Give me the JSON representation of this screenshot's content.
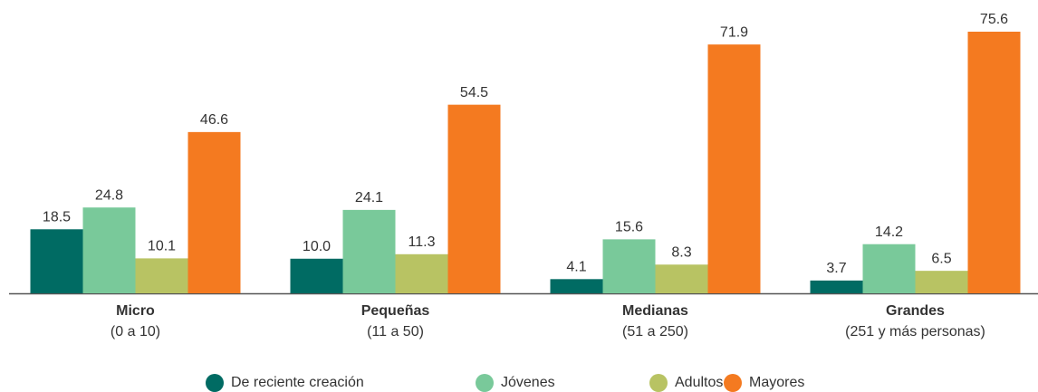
{
  "chart_data": {
    "type": "bar",
    "categories": [
      "Micro",
      "Pequeñas",
      "Medianas",
      "Grandes"
    ],
    "category_ranges": [
      "(0 a 10)",
      "(11 a 50)",
      "(51 a 250)",
      "(251 y más personas)"
    ],
    "series": [
      {
        "name": "De reciente creación",
        "color": "#006b63",
        "values": [
          18.5,
          10.0,
          4.1,
          3.7
        ],
        "value_labels": [
          "18.5",
          "10.0",
          "4.1",
          "3.7"
        ]
      },
      {
        "name": "Jóvenes",
        "color": "#79c99a",
        "values": [
          24.8,
          24.1,
          15.6,
          14.2
        ],
        "value_labels": [
          "24.8",
          "24.1",
          "15.6",
          "14.2"
        ]
      },
      {
        "name": "Adultos",
        "color": "#b8c363",
        "values": [
          10.1,
          11.3,
          8.3,
          6.5
        ],
        "value_labels": [
          "10.1",
          "11.3",
          "8.3",
          "6.5"
        ]
      },
      {
        "name": "Mayores",
        "color": "#f47a20",
        "values": [
          46.6,
          54.5,
          71.9,
          75.6
        ],
        "value_labels": [
          "46.6",
          "54.5",
          "71.9",
          "75.6"
        ]
      }
    ]
  }
}
